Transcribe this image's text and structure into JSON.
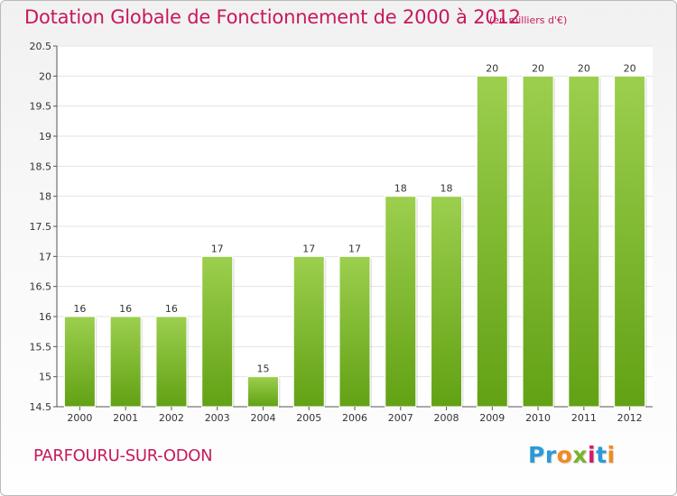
{
  "header": {
    "title": "Dotation Globale de Fonctionnement de 2000 à 2012",
    "unit": "(en milliers d'€)"
  },
  "footer": {
    "commune": "PARFOURU-SUR-ODON",
    "logo_letters": [
      {
        "text": "P",
        "color": "#2c9ad8"
      },
      {
        "text": "r",
        "color": "#2c9ad8"
      },
      {
        "text": "o",
        "color": "#f28a1c"
      },
      {
        "text": "x",
        "color": "#78b32a"
      },
      {
        "text": "i",
        "color": "#d6186b"
      },
      {
        "text": "t",
        "color": "#2c9ad8"
      },
      {
        "text": "i",
        "color": "#f28a1c"
      }
    ]
  },
  "colors": {
    "title": "#c8185c",
    "bar_top": "#9ccf4e",
    "bar_bottom": "#62a114",
    "grid": "#e3e3e3",
    "axis": "#555555"
  },
  "chart_data": {
    "type": "bar",
    "categories": [
      "2000",
      "2001",
      "2002",
      "2003",
      "2004",
      "2005",
      "2006",
      "2007",
      "2008",
      "2009",
      "2010",
      "2011",
      "2012"
    ],
    "values": [
      16,
      16,
      16,
      17,
      15,
      17,
      17,
      18,
      18,
      20,
      20,
      20,
      20
    ],
    "data_labels": [
      "16",
      "16",
      "16",
      "17",
      "15",
      "17",
      "17",
      "18",
      "18",
      "20",
      "20",
      "20",
      "20"
    ],
    "ylim": [
      14.5,
      20.5
    ],
    "yticks": [
      14.5,
      15,
      15.5,
      16,
      16.5,
      17,
      17.5,
      18,
      18.5,
      19,
      19.5,
      20,
      20.5
    ],
    "ytick_labels": [
      "14.5",
      "15",
      "15.5",
      "16",
      "16.5",
      "17",
      "17.5",
      "18",
      "18.5",
      "19",
      "19.5",
      "20",
      "20.5"
    ],
    "grid": true
  }
}
